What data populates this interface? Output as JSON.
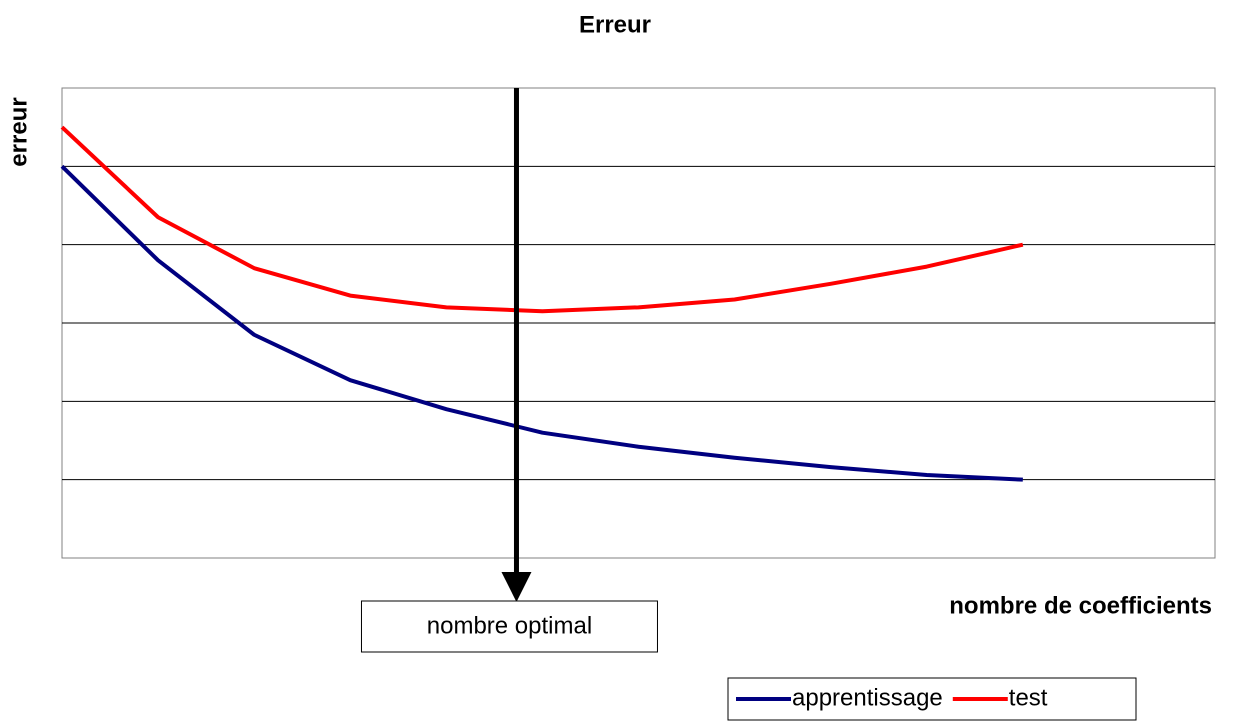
{
  "chart_data": {
    "type": "line",
    "title": "Erreur",
    "y_label": "erreur",
    "x_label": "nombre de coefficients",
    "x": [
      0,
      1,
      2,
      3,
      4,
      5,
      6,
      7,
      8,
      9,
      10
    ],
    "series": [
      {
        "name": "apprentissage",
        "color": "#000080",
        "values": [
          5.0,
          3.8,
          2.85,
          2.27,
          1.9,
          1.6,
          1.42,
          1.28,
          1.16,
          1.06,
          1.0
        ]
      },
      {
        "name": "test",
        "color": "#ff0000",
        "values": [
          5.5,
          4.35,
          3.7,
          3.35,
          3.2,
          3.15,
          3.2,
          3.3,
          3.5,
          3.72,
          4.0
        ]
      }
    ],
    "xlim": [
      0,
      12
    ],
    "ylim": [
      0,
      6
    ],
    "yticks": [
      1,
      2,
      3,
      4,
      5
    ],
    "grid": true,
    "annotations": [
      {
        "text": "nombre optimal",
        "x": 4.73
      }
    ],
    "legend": "bottom-right"
  }
}
